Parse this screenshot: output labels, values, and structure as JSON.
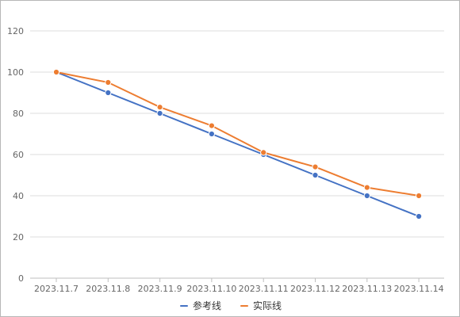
{
  "chart_data": {
    "type": "line",
    "categories": [
      "2023.11.7",
      "2023.11.8",
      "2023.11.9",
      "2023.11.10",
      "2023.11.11",
      "2023.11.12",
      "2023.11.13",
      "2023.11.14"
    ],
    "series": [
      {
        "name": "参考线",
        "color": "#4472c4",
        "values": [
          100,
          90,
          80,
          70,
          60,
          50,
          40,
          30
        ]
      },
      {
        "name": "实际线",
        "color": "#ed7d31",
        "values": [
          100,
          95,
          83,
          74,
          61,
          54,
          44,
          40
        ]
      }
    ],
    "title": "",
    "xlabel": "",
    "ylabel": "",
    "ylim": [
      0,
      120
    ],
    "yticks": [
      0,
      20,
      40,
      60,
      80,
      100,
      120
    ],
    "grid": true,
    "legend_position": "bottom",
    "gridline_color": "#dcdcdc",
    "axis_color": "#bfbfbf"
  }
}
